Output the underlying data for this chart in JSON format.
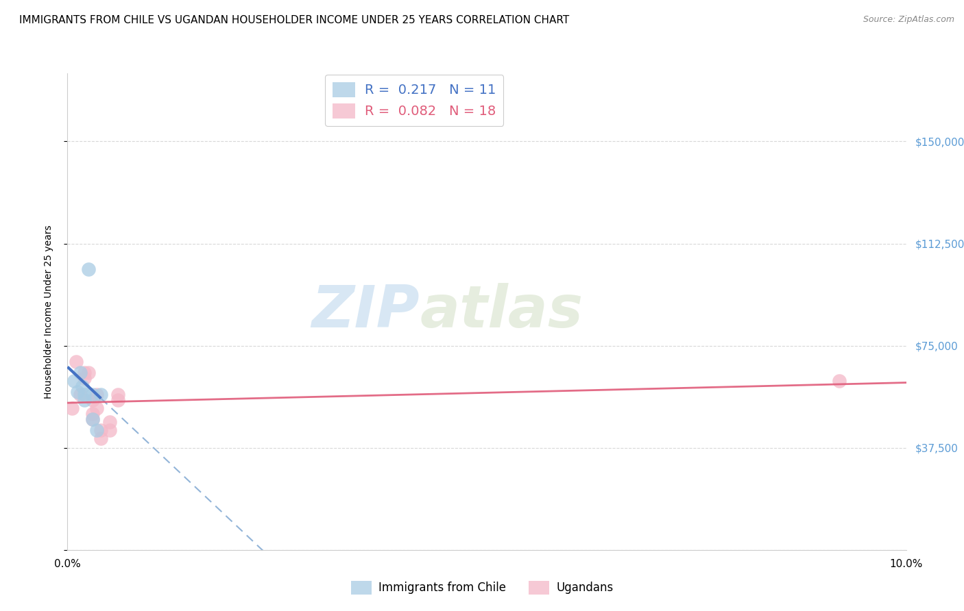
{
  "title": "IMMIGRANTS FROM CHILE VS UGANDAN HOUSEHOLDER INCOME UNDER 25 YEARS CORRELATION CHART",
  "source": "Source: ZipAtlas.com",
  "ylabel": "Householder Income Under 25 years",
  "xlim": [
    0.0,
    0.1
  ],
  "ylim": [
    0,
    175000
  ],
  "yticks": [
    0,
    37500,
    75000,
    112500,
    150000
  ],
  "ytick_labels": [
    "",
    "$37,500",
    "$75,000",
    "$112,500",
    "$150,000"
  ],
  "legend_r1_val": "0.217",
  "legend_n1_val": "11",
  "legend_r2_val": "0.082",
  "legend_n2_val": "18",
  "watermark_zip": "ZIP",
  "watermark_atlas": "atlas",
  "blue_color": "#a8cce4",
  "pink_color": "#f4b8c8",
  "blue_line_color": "#4472c4",
  "pink_line_color": "#e05c7a",
  "blue_dash_color": "#92b4d8",
  "chile_x": [
    0.0008,
    0.0012,
    0.0015,
    0.0018,
    0.002,
    0.002,
    0.0025,
    0.003,
    0.003,
    0.0035,
    0.004
  ],
  "chile_y": [
    62000,
    58000,
    65000,
    60000,
    57000,
    55000,
    103000,
    57000,
    48000,
    44000,
    57000
  ],
  "ugandan_x": [
    0.0005,
    0.001,
    0.0015,
    0.002,
    0.002,
    0.0025,
    0.003,
    0.003,
    0.003,
    0.0035,
    0.0035,
    0.004,
    0.004,
    0.005,
    0.005,
    0.006,
    0.006,
    0.092
  ],
  "ugandan_y": [
    52000,
    69000,
    57000,
    65000,
    63000,
    65000,
    55000,
    50000,
    48000,
    52000,
    57000,
    44000,
    41000,
    47000,
    44000,
    55000,
    57000,
    62000
  ],
  "background_color": "#ffffff",
  "grid_color": "#d8d8d8",
  "title_fontsize": 11,
  "axis_label_fontsize": 10,
  "tick_fontsize": 11,
  "right_tick_color": "#5b9bd5"
}
